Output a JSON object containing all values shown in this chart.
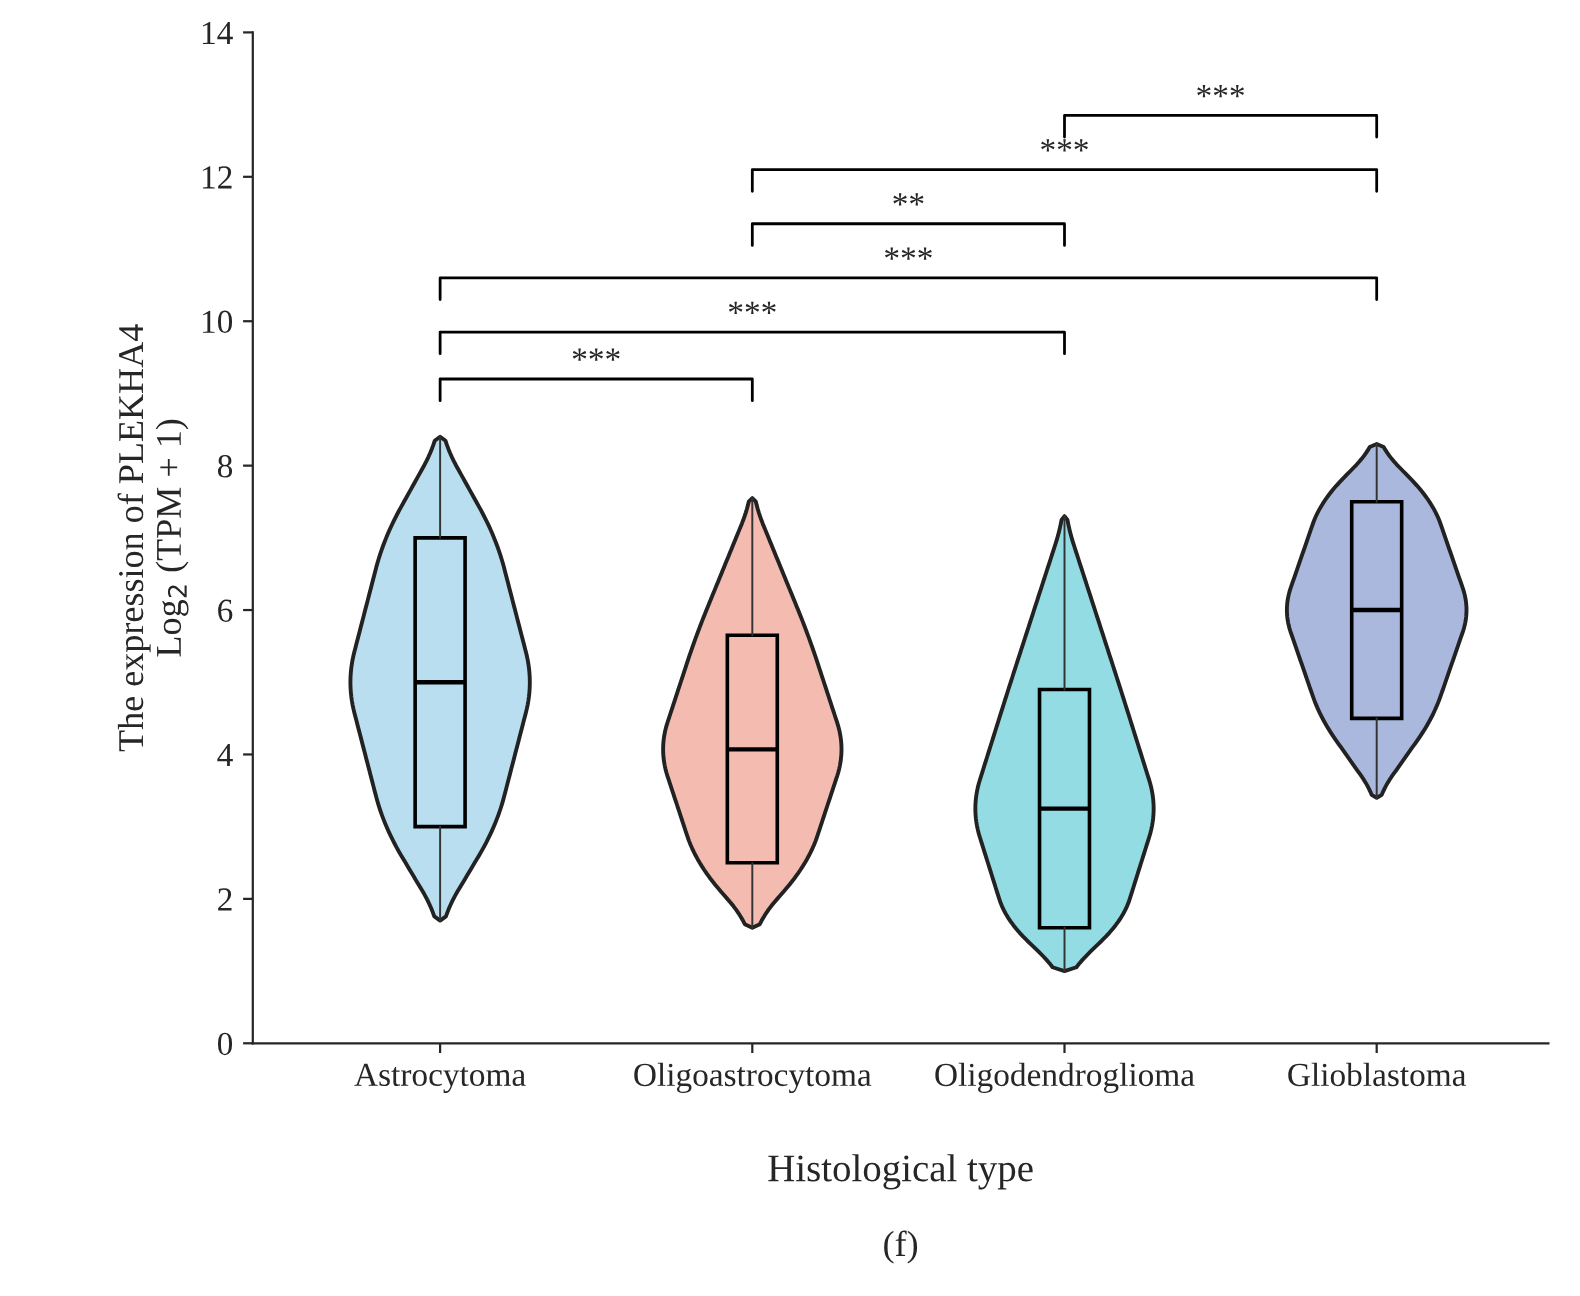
{
  "chart_data": {
    "type": "box",
    "xlabel": "Histological type",
    "ylabel": "The expression of PLEKHA4\nLog$_{2}$ (TPM + 1)",
    "categories": [
      "Astrocytoma",
      "Oligoastrocytoma",
      "Oligodendroglioma",
      "Glioblastoma"
    ],
    "colors": [
      "#b9def0",
      "#f4bcb0",
      "#93dce3",
      "#a9b8dc"
    ],
    "boxes": [
      {
        "low": 1.7,
        "q1": 3.0,
        "median": 5.0,
        "q3": 7.0,
        "high": 8.4
      },
      {
        "low": 1.6,
        "q1": 2.5,
        "median": 4.07,
        "q3": 5.65,
        "high": 7.55
      },
      {
        "low": 1.0,
        "q1": 1.6,
        "median": 3.25,
        "q3": 4.9,
        "high": 7.3
      },
      {
        "low": 3.4,
        "q1": 4.5,
        "median": 6.0,
        "q3": 7.5,
        "high": 8.3
      }
    ],
    "ylim": [
      0,
      14
    ],
    "yticks": [
      0,
      2,
      4,
      6,
      8,
      10,
      12,
      14
    ],
    "grid": false,
    "legend": false,
    "annotations": [
      "***",
      "***",
      "***",
      "**",
      "***",
      "***",
      "(f)"
    ]
  }
}
